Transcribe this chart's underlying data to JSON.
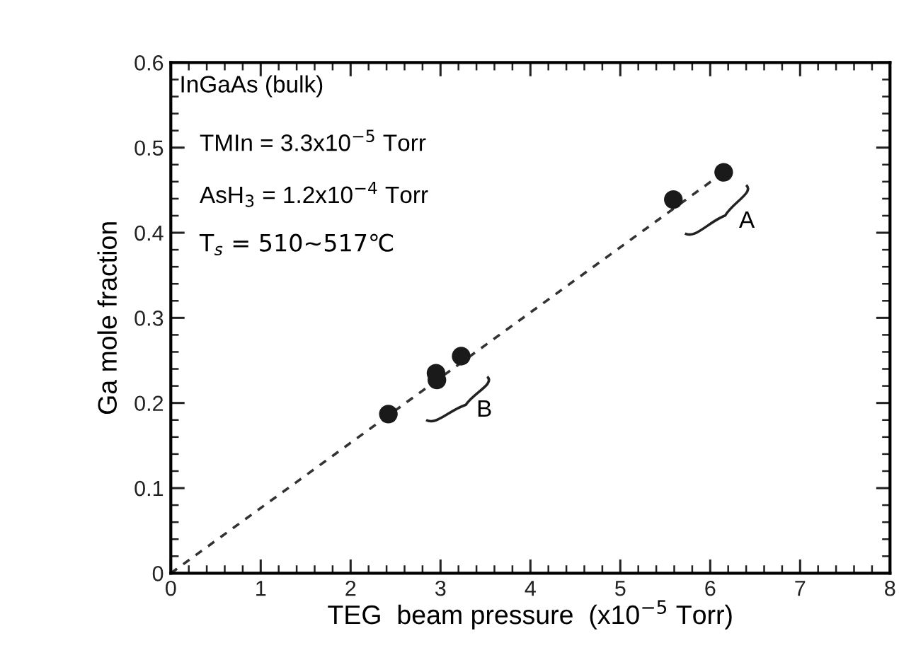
{
  "chart_data": {
    "type": "scatter",
    "xlabel": "TEG  beam pressure  (x10$^{−5}$ Torr)",
    "ylabel": "Ga mole fraction",
    "xlim": [
      0,
      8
    ],
    "ylim": [
      0,
      0.6
    ],
    "xticks": [
      0,
      1,
      2,
      3,
      4,
      5,
      6,
      7,
      8
    ],
    "yticks": [
      0,
      0.1,
      0.2,
      0.3,
      0.4,
      0.5,
      0.6
    ],
    "grid": false,
    "series": [
      {
        "marker": "circle",
        "color": "#1a1a1a",
        "x": [
          2.42,
          2.95,
          2.96,
          3.23,
          5.59,
          6.15
        ],
        "values": [
          0.187,
          0.235,
          0.227,
          0.255,
          0.439,
          0.471
        ]
      },
      {
        "type": "line",
        "color": "#333333",
        "line_style": "dashed",
        "x": [
          0,
          6.15
        ],
        "values": [
          0,
          0.471
        ]
      }
    ],
    "annotations": [
      "InGaAs (bulk)",
      "TMIn = 3.3x10$^{−5}$ Torr",
      "AsH$_{3}$ = 1.2x10$^{−4}$ Torr",
      "T$_{s}$ = 510~517℃",
      "A",
      "B"
    ]
  }
}
